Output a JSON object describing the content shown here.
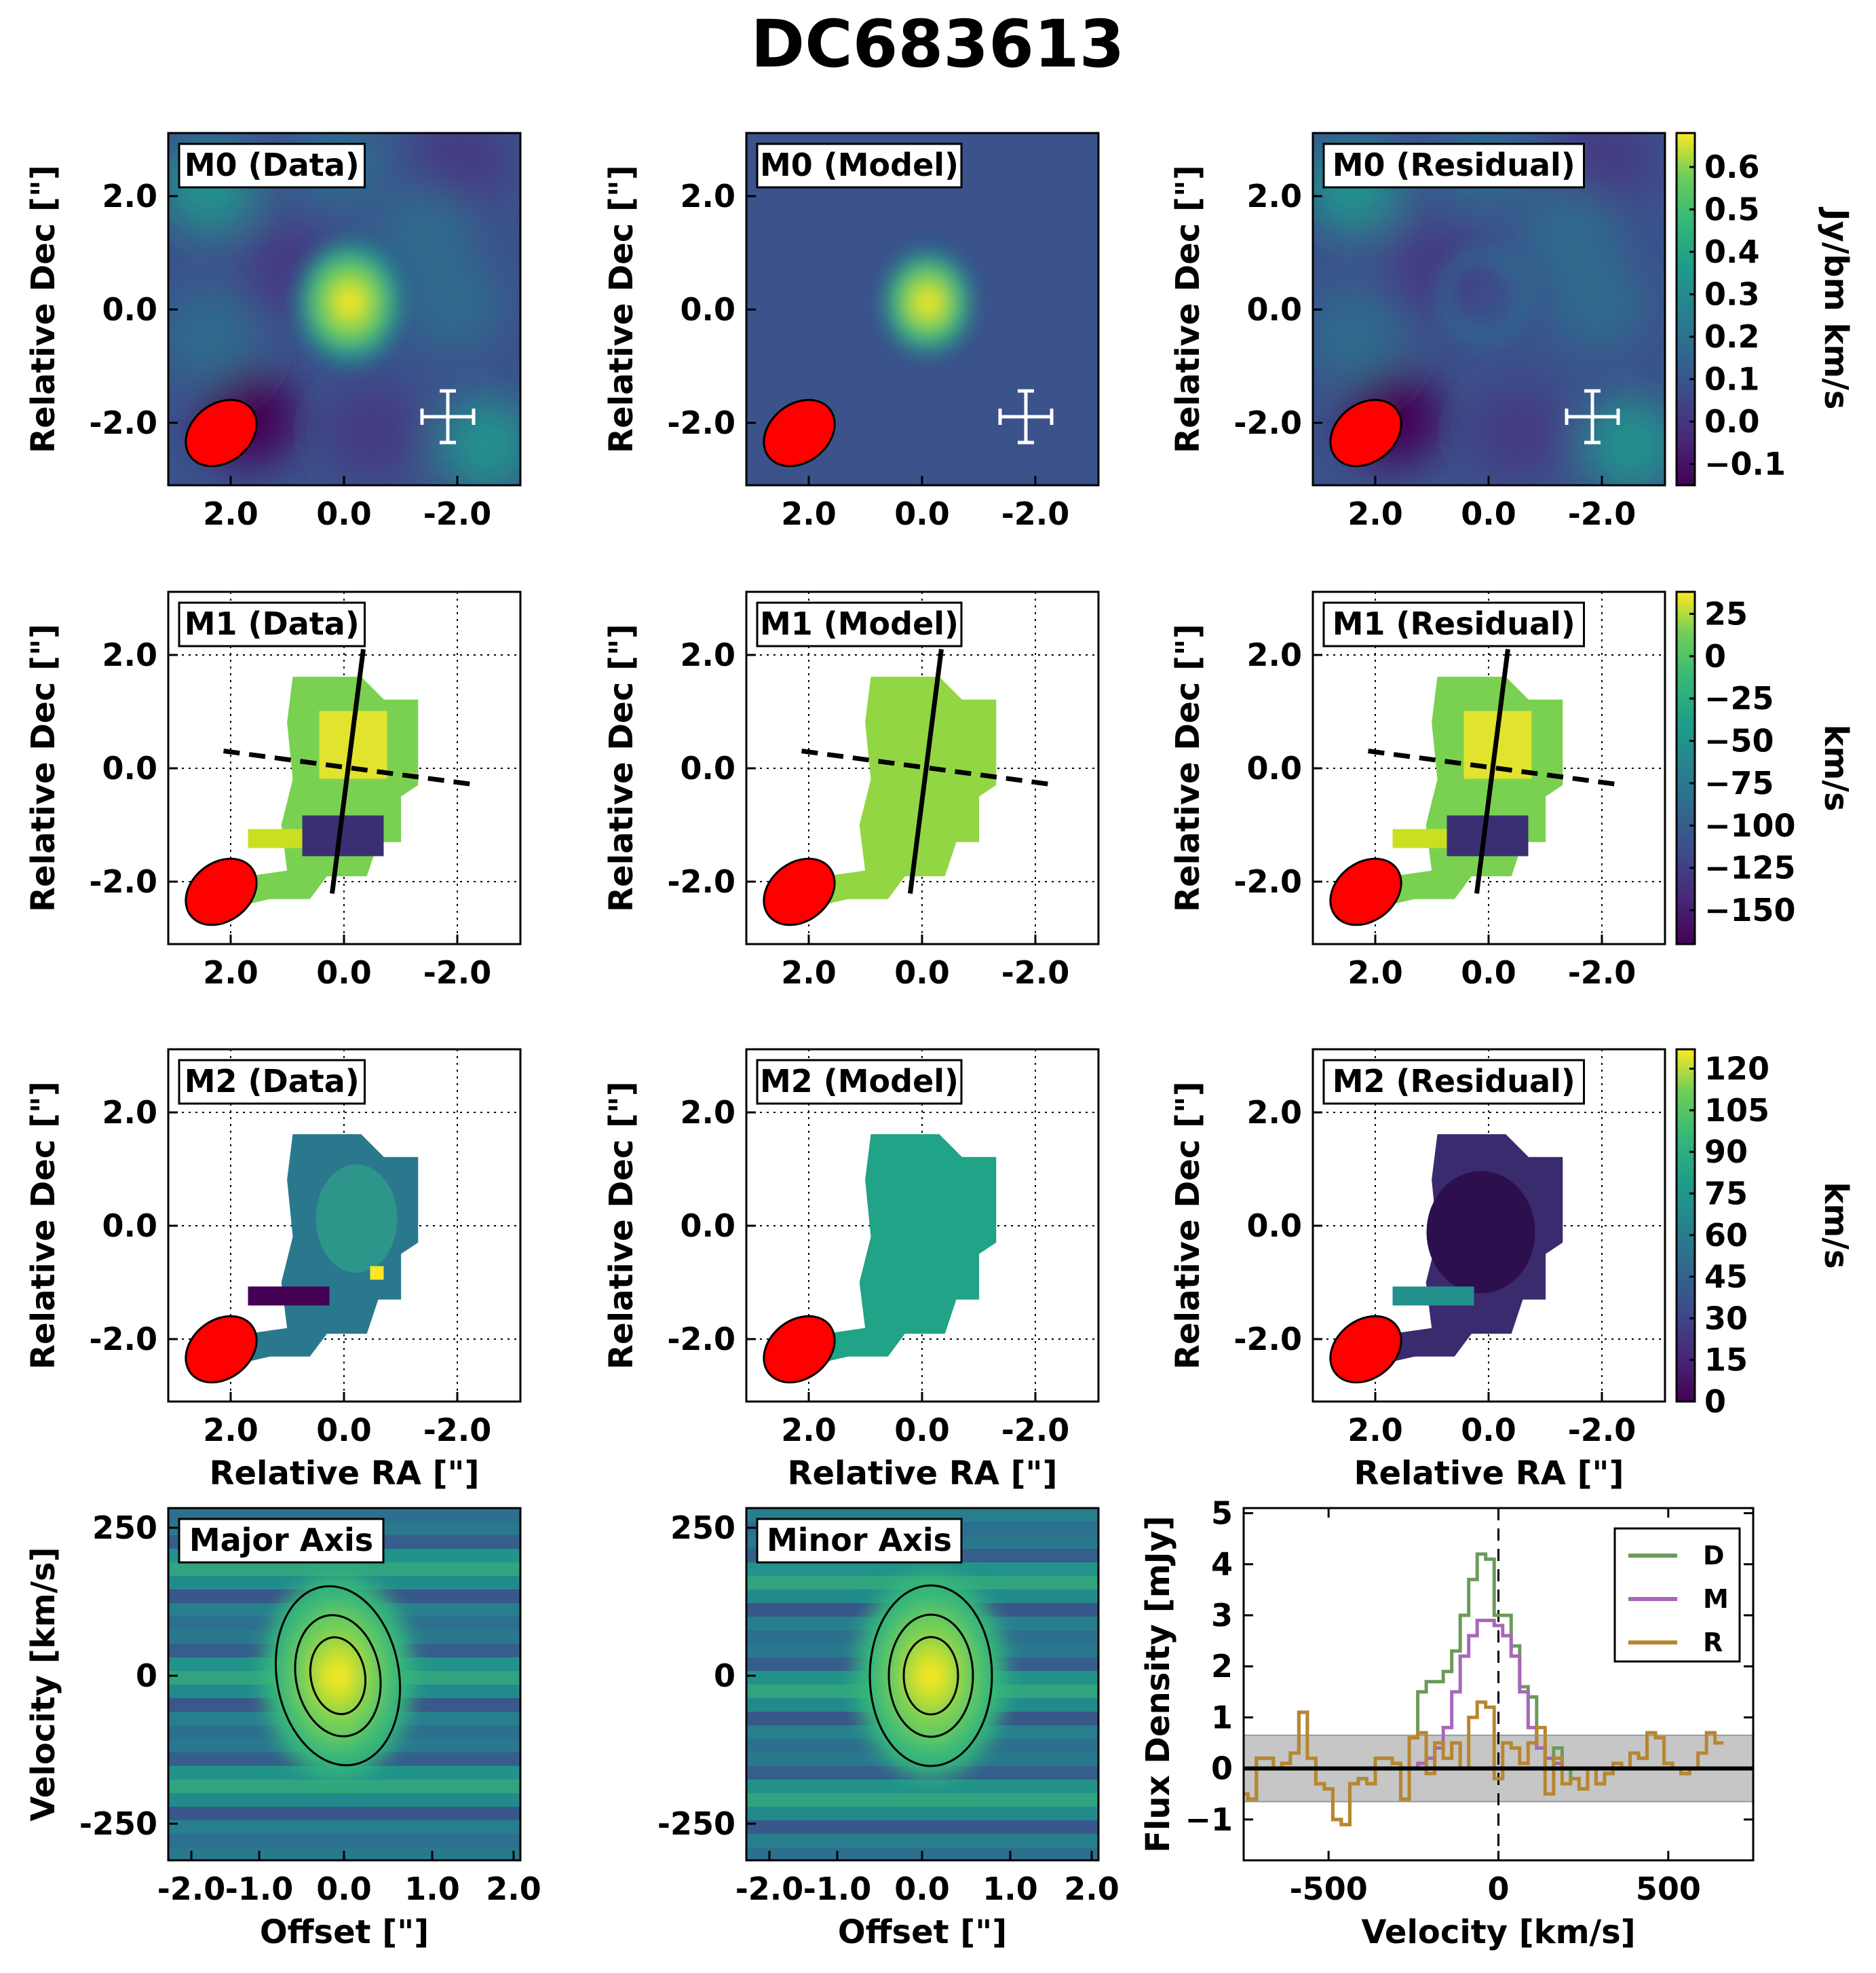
{
  "title": "DC683613",
  "colors": {
    "beam": "#ff0000",
    "line_data": "#6b9a5a",
    "line_model": "#a867b8",
    "line_residual": "#b8862e",
    "noise_band": "#bdbdbd"
  },
  "rows": [
    {
      "ylabel": "Relative Dec [\"]",
      "panels": [
        {
          "label": "M0 (Data)"
        },
        {
          "label": "M0 (Model)"
        },
        {
          "label": "M0 (Residual)"
        }
      ],
      "colorbar": {
        "label": "Jy/bm km/s",
        "colormap": "viridis",
        "range": [
          -0.15,
          0.68
        ],
        "ticks": [
          "0.6",
          "0.5",
          "0.4",
          "0.3",
          "0.2",
          "0.1",
          "0.0",
          "−0.1"
        ]
      }
    },
    {
      "ylabel": "Relative Dec [\"]",
      "panels": [
        {
          "label": "M1 (Data)"
        },
        {
          "label": "M1 (Model)"
        },
        {
          "label": "M1 (Residual)"
        }
      ],
      "colorbar": {
        "label": "km/s",
        "colormap": "viridis",
        "range": [
          -170,
          38
        ],
        "ticks": [
          "25",
          "0",
          "−25",
          "−50",
          "−75",
          "−100",
          "−125",
          "−150"
        ]
      }
    },
    {
      "ylabel": "Relative Dec [\"]",
      "xlabel": "Relative RA [\"]",
      "panels": [
        {
          "label": "M2 (Data)"
        },
        {
          "label": "M2 (Model)"
        },
        {
          "label": "M2 (Residual)"
        }
      ],
      "colorbar": {
        "label": "km/s",
        "colormap": "viridis",
        "range": [
          0,
          127
        ],
        "ticks": [
          "120",
          "105",
          "90",
          "75",
          "60",
          "45",
          "30",
          "15",
          "0"
        ]
      }
    }
  ],
  "map_axes": {
    "x_ticks": [
      "2.0",
      "0.0",
      "-2.0"
    ],
    "y_ticks": [
      "2.0",
      "0.0",
      "-2.0"
    ],
    "range": [
      -3.1,
      3.1
    ]
  },
  "pv_panels": [
    {
      "label": "Major Axis",
      "ylabel": "Velocity [km/s]",
      "xlabel": "Offset [\"]"
    },
    {
      "label": "Minor Axis",
      "ylabel": "",
      "xlabel": "Offset [\"]"
    }
  ],
  "pv_axes": {
    "x_ticks": [
      "-2.0",
      "-1.0",
      "0.0",
      "1.0",
      "2.0"
    ],
    "y_ticks": [
      "250",
      "0",
      "-250"
    ]
  },
  "chart_data": {
    "type": "line",
    "xlabel": "Velocity [km/s]",
    "ylabel": "Flux Density [mJy]",
    "xlim": [
      -750,
      750
    ],
    "ylim": [
      -1.8,
      5.1
    ],
    "x_ticks": [
      "-500",
      "0",
      "500"
    ],
    "y_ticks": [
      "5",
      "4",
      "3",
      "2",
      "1",
      "0",
      "−1"
    ],
    "legend": "top-right",
    "noise_band": [
      -0.65,
      0.65
    ],
    "series": [
      {
        "name": "D",
        "x": [
          -750,
          -725,
          -700,
          -675,
          -650,
          -625,
          -600,
          -575,
          -550,
          -525,
          -500,
          -475,
          -450,
          -425,
          -400,
          -375,
          -350,
          -325,
          -300,
          -275,
          -250,
          -225,
          -200,
          -175,
          -150,
          -125,
          -100,
          -75,
          -50,
          -25,
          0,
          25,
          50,
          75,
          100,
          125,
          150,
          175,
          200,
          225,
          250,
          275,
          300,
          325,
          350,
          375,
          400,
          425,
          450,
          475,
          500,
          525,
          550,
          575,
          600,
          625,
          650,
          675,
          700,
          725,
          750
        ],
        "y": [
          -0.5,
          -0.6,
          0.2,
          0.2,
          0.0,
          0.1,
          0.3,
          1.1,
          0.2,
          -0.3,
          -0.4,
          -1.0,
          -1.1,
          -0.3,
          -0.2,
          -0.3,
          0.2,
          0.2,
          0.1,
          -0.6,
          0.6,
          1.5,
          1.7,
          1.7,
          1.9,
          2.3,
          3.0,
          3.7,
          4.2,
          4.1,
          3.0,
          3.0,
          2.4,
          1.6,
          1.4,
          0.4,
          0.0,
          0.4,
          0.0,
          -0.2,
          -0.4,
          0.0,
          -0.3,
          -0.1,
          0.1,
          0.0,
          0.3,
          0.2,
          0.7,
          0.6,
          0.1,
          0.0,
          -0.1,
          0.0,
          0.0,
          0.0,
          0.0,
          0.0,
          0.0,
          0.0,
          0.0
        ]
      },
      {
        "name": "M",
        "x": [
          -250,
          -225,
          -200,
          -175,
          -150,
          -125,
          -100,
          -75,
          -50,
          -25,
          0,
          25,
          50,
          75,
          100,
          125,
          150,
          175,
          200
        ],
        "y": [
          0.0,
          0.1,
          0.2,
          0.4,
          0.8,
          1.5,
          2.2,
          2.6,
          2.9,
          2.9,
          2.8,
          2.6,
          2.2,
          1.5,
          0.8,
          0.4,
          0.2,
          0.1,
          0.0
        ]
      },
      {
        "name": "R",
        "x": [
          -750,
          -725,
          -700,
          -675,
          -650,
          -625,
          -600,
          -575,
          -550,
          -525,
          -500,
          -475,
          -450,
          -425,
          -400,
          -375,
          -350,
          -325,
          -300,
          -275,
          -250,
          -225,
          -200,
          -175,
          -150,
          -125,
          -100,
          -75,
          -50,
          -25,
          0,
          25,
          50,
          75,
          100,
          125,
          150,
          175,
          200,
          225,
          250,
          275,
          300,
          325,
          350,
          375,
          400,
          425,
          450,
          475,
          500,
          525,
          550,
          575,
          600,
          625,
          650
        ],
        "y": [
          -0.5,
          -0.6,
          0.2,
          0.2,
          0.0,
          0.1,
          0.3,
          1.1,
          0.2,
          -0.3,
          -0.4,
          -1.0,
          -1.1,
          -0.3,
          -0.2,
          -0.3,
          0.2,
          0.2,
          0.1,
          -0.6,
          0.6,
          0.7,
          -0.1,
          0.5,
          0.2,
          0.5,
          0.0,
          1.0,
          1.3,
          1.2,
          -0.2,
          0.5,
          0.4,
          0.1,
          0.5,
          0.8,
          -0.5,
          0.2,
          -0.3,
          -0.2,
          -0.4,
          0.0,
          -0.3,
          -0.1,
          0.1,
          0.0,
          0.3,
          0.2,
          0.7,
          0.6,
          0.1,
          0.0,
          -0.1,
          0.0,
          0.3,
          0.7,
          0.5
        ]
      }
    ]
  }
}
